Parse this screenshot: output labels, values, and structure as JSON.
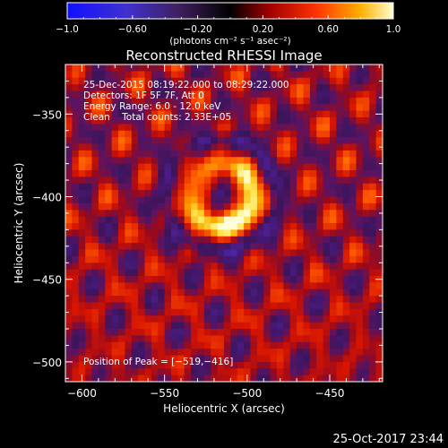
{
  "chart_data": {
    "type": "heatmap",
    "title": "Reconstructed RHESSI Image",
    "xlabel": "Heliocentric X (arcsec)",
    "ylabel": "Heliocentric Y (arcsec)",
    "xlim": [
      -610,
      -418
    ],
    "ylim": [
      -512,
      -320
    ],
    "x_ticks": [
      -600,
      -550,
      -500,
      -450
    ],
    "x_tick_labels": [
      "−600",
      "−550",
      "−500",
      "−450"
    ],
    "y_ticks": [
      -350,
      -400,
      -450,
      -500
    ],
    "y_tick_labels": [
      "−350",
      "−400",
      "−450",
      "−500"
    ],
    "colorbar": {
      "range": [
        -1.0,
        1.0
      ],
      "ticks": [
        -1.0,
        -0.6,
        -0.2,
        0.2,
        0.6,
        1.0
      ],
      "tick_labels": [
        "−1.0",
        "−0.60",
        "−0.20",
        "0.20",
        "0.60",
        "1.0"
      ],
      "unit_label": "(photons cm⁻² s⁻¹ asec⁻²)"
    },
    "annotations": [
      "25-Dec-2015 08:19:22.000 to 08:29:22.000",
      "Detectors: 1F 5F 7F, Att 0",
      "Energy Range: 6.0 - 12.0 keV",
      "Clean    Total counts: 2.33E+05"
    ],
    "peak_label": "Position of Peak = [−519,−416]",
    "peak": [
      -519,
      -416
    ],
    "grid": false
  },
  "footer": {
    "timestamp": "25-Oct-2017 23:44"
  }
}
